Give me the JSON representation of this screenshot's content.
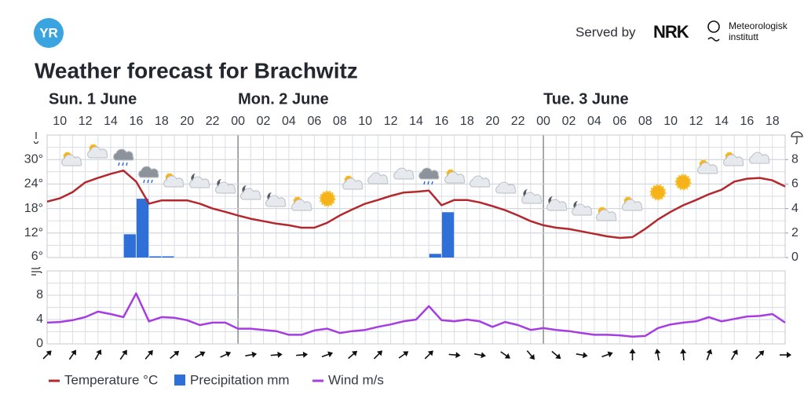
{
  "header": {
    "logo": "YR",
    "served_by": "Served by",
    "partner_logo": "NRK",
    "partner_name_line1": "Meteorologisk",
    "partner_name_line2": "institutt"
  },
  "title": "Weather forecast for Brachwitz",
  "days": [
    "Sun. 1 June",
    "Mon. 2 June",
    "Tue. 3 June"
  ],
  "chart_data": [
    {
      "type": "line",
      "categories": [
        null,
        "10",
        null,
        "12",
        null,
        "14",
        null,
        "16",
        null,
        "18",
        null,
        "20",
        null,
        "22",
        null,
        "00",
        null,
        "02",
        null,
        "04",
        null,
        "06",
        null,
        "08",
        null,
        "10",
        null,
        "12",
        null,
        "14",
        null,
        "16",
        null,
        "18",
        null,
        "20",
        null,
        "22",
        null,
        "00",
        null,
        "02",
        null,
        "04",
        null,
        "06",
        null,
        "08",
        null,
        "10",
        null,
        "12",
        null,
        "14",
        null,
        "16",
        null,
        "18",
        null
      ],
      "ylim": [
        6,
        36
      ],
      "yticks": [
        {
          "value": 6,
          "label": "6°"
        },
        {
          "value": 12,
          "label": "12°"
        },
        {
          "value": 18,
          "label": "18°"
        },
        {
          "value": 24,
          "label": "24°"
        },
        {
          "value": 30,
          "label": "30°"
        }
      ],
      "y2lim": [
        0,
        10
      ],
      "y2ticks": [
        0,
        2,
        4,
        6,
        8
      ],
      "grid": true,
      "series": [
        {
          "name": "Temperature °C",
          "color": "#b3282d",
          "type": "line",
          "values": [
            19.7,
            20.5,
            22,
            24.4,
            25.5,
            26.5,
            27.3,
            24.6,
            19.2,
            20,
            20,
            20,
            19.2,
            18,
            17.2,
            16.3,
            15.5,
            14.9,
            14.3,
            13.9,
            13.3,
            13.3,
            14.5,
            16.3,
            17.8,
            19.2,
            20.1,
            21.1,
            21.9,
            22.1,
            22.4,
            18.8,
            20.1,
            20.1,
            19.5,
            18.6,
            17.6,
            16.3,
            14.9,
            13.9,
            13.3,
            13,
            12.4,
            11.8,
            11.2,
            10.8,
            11,
            13,
            15.3,
            17.2,
            18.8,
            20.1,
            21.5,
            22.6,
            24.6,
            25.3,
            25.5,
            24.9,
            23.4
          ]
        },
        {
          "name": "Precipitation mm",
          "color": "#2f6fd8",
          "type": "bar",
          "axis": "y2",
          "values": [
            0,
            0,
            0,
            0,
            0,
            0,
            1.9,
            4.8,
            0.1,
            0.1,
            0,
            0,
            0,
            0,
            0,
            0,
            0,
            0,
            0,
            0,
            0,
            0,
            0,
            0,
            0,
            0,
            0,
            0,
            0,
            0,
            0.3,
            3.7,
            0,
            0,
            0,
            0,
            0,
            0,
            0,
            0,
            0,
            0,
            0,
            0,
            0,
            0,
            0,
            0,
            0,
            0,
            0,
            0,
            0,
            0,
            0,
            0,
            0,
            0,
            0
          ]
        }
      ]
    },
    {
      "type": "line",
      "ylim": [
        0,
        12
      ],
      "yticks": [
        0,
        4,
        8
      ],
      "grid": true,
      "series": [
        {
          "name": "Wind m/s",
          "color": "#a63de0",
          "values": [
            3.5,
            3.6,
            3.9,
            4.4,
            5.3,
            4.9,
            4.4,
            8.3,
            3.7,
            4.4,
            4.3,
            3.9,
            3.1,
            3.5,
            3.5,
            2.5,
            2.5,
            2.3,
            2.1,
            1.5,
            1.5,
            2.2,
            2.5,
            1.8,
            2.1,
            2.3,
            2.8,
            3.2,
            3.7,
            4,
            6.2,
            3.9,
            3.7,
            4,
            3.7,
            2.8,
            3.6,
            3.1,
            2.3,
            2.6,
            2.3,
            2.1,
            1.8,
            1.5,
            1.5,
            1.4,
            1.2,
            1.3,
            2.6,
            3.2,
            3.5,
            3.7,
            4.4,
            3.7,
            4.1,
            4.5,
            4.6,
            4.9,
            3.5
          ]
        }
      ],
      "wind_direction_deg": [
        45,
        35,
        30,
        35,
        40,
        50,
        60,
        65,
        80,
        85,
        85,
        70,
        50,
        45,
        55,
        45,
        95,
        100,
        125,
        140,
        130,
        100,
        70,
        0,
        350,
        355,
        20,
        30,
        45,
        90
      ]
    }
  ]
}
